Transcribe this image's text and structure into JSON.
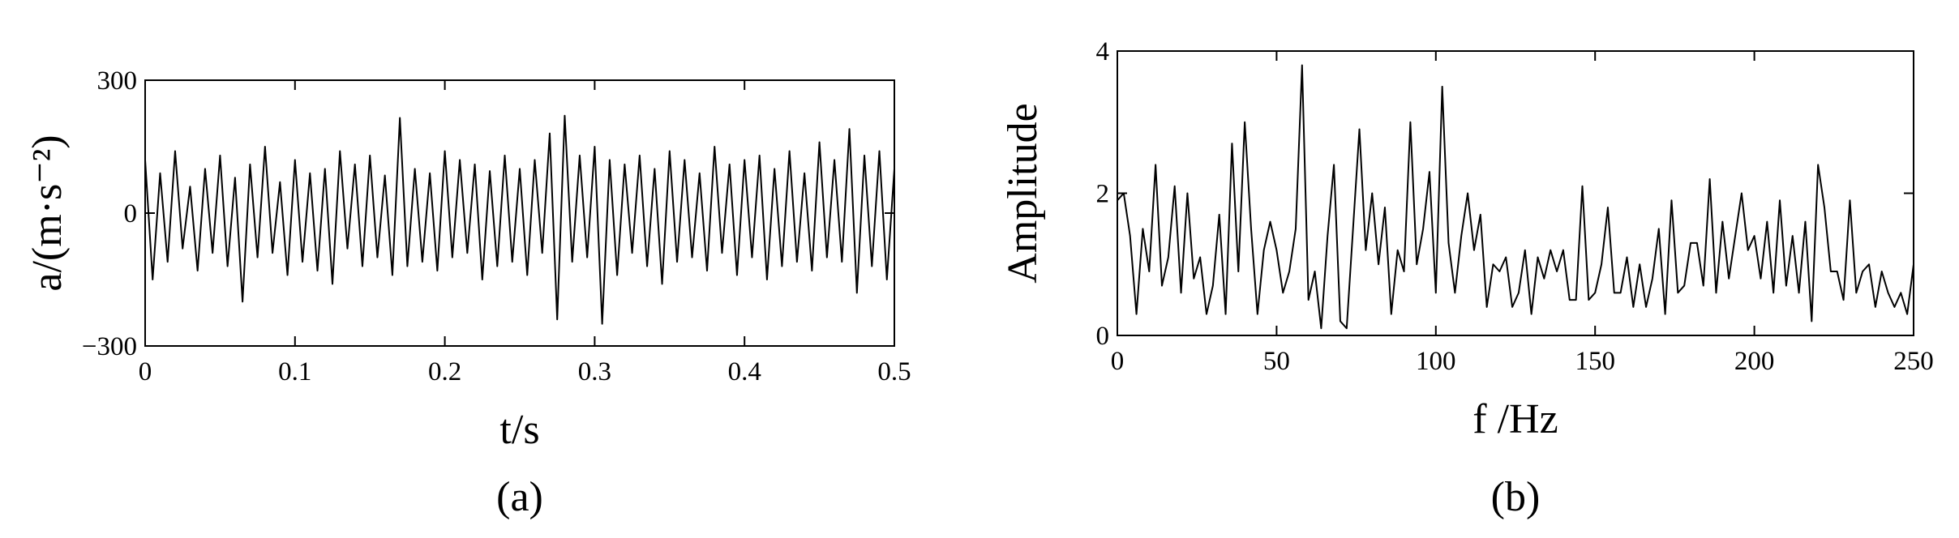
{
  "chart_data": [
    {
      "type": "line",
      "xlabel": "t/s",
      "ylabel": "a/(m·s⁻²)",
      "caption": "(a)",
      "color": "#000000",
      "x": [
        0,
        0.005,
        0.01,
        0.015,
        0.02,
        0.025,
        0.03,
        0.035,
        0.04,
        0.045,
        0.05,
        0.055,
        0.06,
        0.065,
        0.07,
        0.075,
        0.08,
        0.085,
        0.09,
        0.095,
        0.1,
        0.105,
        0.11,
        0.115,
        0.12,
        0.125,
        0.13,
        0.135,
        0.14,
        0.145,
        0.15,
        0.155,
        0.16,
        0.165,
        0.17,
        0.175,
        0.18,
        0.185,
        0.19,
        0.195,
        0.2,
        0.205,
        0.21,
        0.215,
        0.22,
        0.225,
        0.23,
        0.235,
        0.24,
        0.245,
        0.25,
        0.255,
        0.26,
        0.265,
        0.27,
        0.275,
        0.28,
        0.285,
        0.29,
        0.295,
        0.3,
        0.305,
        0.31,
        0.315,
        0.32,
        0.325,
        0.33,
        0.335,
        0.34,
        0.345,
        0.35,
        0.355,
        0.36,
        0.365,
        0.37,
        0.375,
        0.38,
        0.385,
        0.39,
        0.395,
        0.4,
        0.405,
        0.41,
        0.415,
        0.42,
        0.425,
        0.43,
        0.435,
        0.44,
        0.445,
        0.45,
        0.455,
        0.46,
        0.465,
        0.47,
        0.475,
        0.48,
        0.485,
        0.49,
        0.495,
        0.5
      ],
      "values": [
        120,
        -150,
        90,
        -110,
        140,
        -80,
        60,
        -130,
        100,
        -90,
        130,
        -120,
        80,
        -200,
        110,
        -100,
        150,
        -90,
        70,
        -140,
        120,
        -110,
        90,
        -130,
        100,
        -160,
        140,
        -80,
        110,
        -120,
        130,
        -100,
        85,
        -140,
        215,
        -120,
        100,
        -110,
        90,
        -130,
        140,
        -100,
        120,
        -90,
        110,
        -150,
        95,
        -120,
        130,
        -110,
        100,
        -140,
        120,
        -90,
        180,
        -240,
        220,
        -110,
        130,
        -100,
        150,
        -250,
        120,
        -140,
        110,
        -90,
        130,
        -120,
        100,
        -160,
        140,
        -110,
        120,
        -100,
        90,
        -130,
        150,
        -90,
        110,
        -140,
        120,
        -100,
        130,
        -150,
        100,
        -120,
        140,
        -110,
        90,
        -130,
        160,
        -100,
        120,
        -110,
        190,
        -180,
        130,
        -120,
        140,
        -150,
        100
      ],
      "xlim": [
        0,
        0.5
      ],
      "xticks": [
        0,
        0.1,
        0.2,
        0.3,
        0.4,
        0.5
      ],
      "ylim": [
        -300,
        300
      ],
      "yticks": [
        {
          "value": -300,
          "label": "−300"
        },
        0,
        300
      ]
    },
    {
      "type": "line",
      "xlabel": "f /Hz",
      "ylabel": "Amplitude",
      "caption": "(b)",
      "color": "#000000",
      "x": [
        0,
        2,
        4,
        6,
        8,
        10,
        12,
        14,
        16,
        18,
        20,
        22,
        24,
        26,
        28,
        30,
        32,
        34,
        36,
        38,
        40,
        42,
        44,
        46,
        48,
        50,
        52,
        54,
        56,
        58,
        60,
        62,
        64,
        66,
        68,
        70,
        72,
        74,
        76,
        78,
        80,
        82,
        84,
        86,
        88,
        90,
        92,
        94,
        96,
        98,
        100,
        102,
        104,
        106,
        108,
        110,
        112,
        114,
        116,
        118,
        120,
        122,
        124,
        126,
        128,
        130,
        132,
        134,
        136,
        138,
        140,
        142,
        144,
        146,
        148,
        150,
        152,
        154,
        156,
        158,
        160,
        162,
        164,
        166,
        168,
        170,
        172,
        174,
        176,
        178,
        180,
        182,
        184,
        186,
        188,
        190,
        192,
        194,
        196,
        198,
        200,
        202,
        204,
        206,
        208,
        210,
        212,
        214,
        216,
        218,
        220,
        222,
        224,
        226,
        228,
        230,
        232,
        234,
        236,
        238,
        240,
        242,
        244,
        246,
        248,
        250
      ],
      "values": [
        1.9,
        2.0,
        1.4,
        0.3,
        1.5,
        0.9,
        2.4,
        0.7,
        1.1,
        2.1,
        0.6,
        2.0,
        0.8,
        1.1,
        0.3,
        0.7,
        1.7,
        0.3,
        2.7,
        0.9,
        3.0,
        1.5,
        0.3,
        1.2,
        1.6,
        1.2,
        0.6,
        0.9,
        1.5,
        3.8,
        0.5,
        0.9,
        0.1,
        1.4,
        2.4,
        0.2,
        0.1,
        1.5,
        2.9,
        1.2,
        2.0,
        1.0,
        1.8,
        0.3,
        1.2,
        0.9,
        3.0,
        1.0,
        1.5,
        2.3,
        0.6,
        3.5,
        1.3,
        0.6,
        1.4,
        2.0,
        1.2,
        1.7,
        0.4,
        1.0,
        0.9,
        1.1,
        0.4,
        0.6,
        1.2,
        0.3,
        1.1,
        0.8,
        1.2,
        0.9,
        1.2,
        0.5,
        0.5,
        2.1,
        0.5,
        0.6,
        1.0,
        1.8,
        0.6,
        0.6,
        1.1,
        0.4,
        1.0,
        0.4,
        0.8,
        1.5,
        0.3,
        1.9,
        0.6,
        0.7,
        1.3,
        1.3,
        0.7,
        2.2,
        0.6,
        1.6,
        0.8,
        1.4,
        2.0,
        1.2,
        1.4,
        0.8,
        1.6,
        0.6,
        1.9,
        0.7,
        1.4,
        0.6,
        1.6,
        0.2,
        2.4,
        1.8,
        0.9,
        0.9,
        0.5,
        1.9,
        0.6,
        0.9,
        1.0,
        0.4,
        0.9,
        0.6,
        0.4,
        0.6,
        0.3,
        1.0
      ],
      "xlim": [
        0,
        250
      ],
      "xticks": [
        0,
        50,
        100,
        150,
        200,
        250
      ],
      "ylim": [
        0,
        4
      ],
      "yticks": [
        0,
        2,
        4
      ]
    }
  ]
}
